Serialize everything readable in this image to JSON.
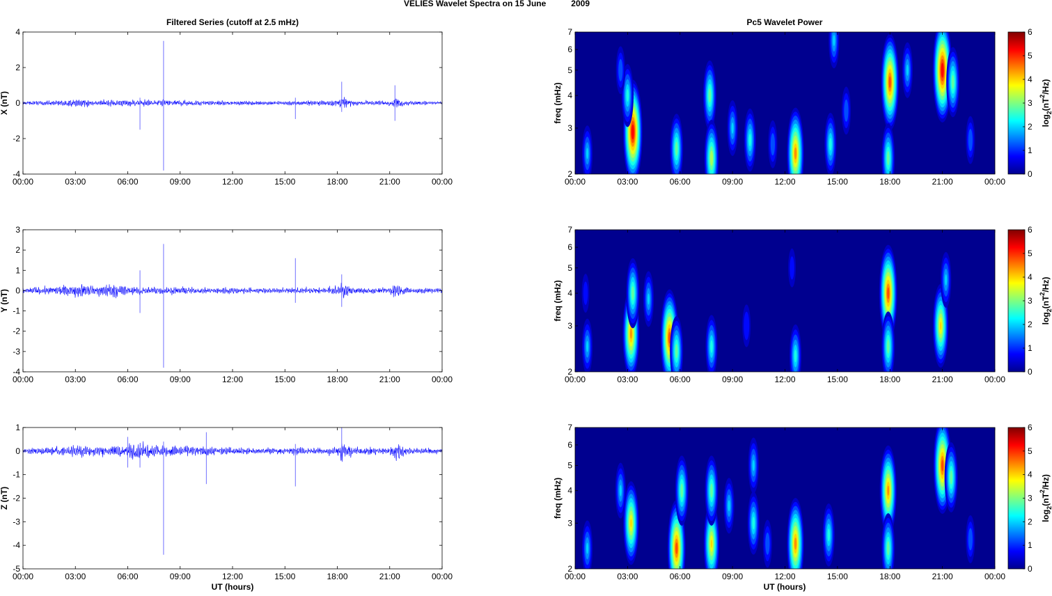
{
  "title": {
    "main": "VELIES Wavelet Spectra on 15 June",
    "year": "2009"
  },
  "column_titles": {
    "left": "Filtered Series (cutoff at 2.5 mHz)",
    "right": "Pc5 Wavelet Power"
  },
  "xlabel": "UT (hours)",
  "time_ticks": [
    "00:00",
    "03:00",
    "06:00",
    "09:00",
    "12:00",
    "15:00",
    "18:00",
    "21:00",
    "00:00"
  ],
  "colorbar": {
    "ticks": [
      "0",
      "1",
      "2",
      "3",
      "4",
      "5",
      "6"
    ],
    "range": [
      0,
      6
    ],
    "label_parts": [
      "log",
      "2",
      "(nT",
      "2",
      "/Hz)"
    ]
  },
  "colors": {
    "series": "#0000ff",
    "spike": "#7070ff",
    "background": "#00008f"
  },
  "chart_data": [
    {
      "type": "line",
      "component": "X",
      "ylabel": "X (nT)",
      "ylim": [
        -4,
        4
      ],
      "yticks": [
        "-4",
        "-2",
        "0",
        "2",
        "4"
      ],
      "xlim_hours": [
        0,
        24
      ],
      "envelope": [
        [
          0,
          0.07
        ],
        [
          2.5,
          0.12
        ],
        [
          3.3,
          0.18
        ],
        [
          4,
          0.1
        ],
        [
          6,
          0.12
        ],
        [
          8,
          0.12
        ],
        [
          10,
          0.1
        ],
        [
          12,
          0.08
        ],
        [
          15,
          0.08
        ],
        [
          18,
          0.12
        ],
        [
          18.3,
          0.25
        ],
        [
          19,
          0.08
        ],
        [
          21,
          0.1
        ],
        [
          21.3,
          0.22
        ],
        [
          22,
          0.09
        ],
        [
          24,
          0.06
        ]
      ],
      "spikes": [
        [
          6.7,
          0.3,
          -1.5
        ],
        [
          8.05,
          3.5,
          -3.8
        ],
        [
          15.6,
          0.3,
          -0.9
        ],
        [
          18.25,
          1.2,
          -0.5
        ],
        [
          21.3,
          1.0,
          -1.0
        ]
      ]
    },
    {
      "type": "line",
      "component": "Y",
      "ylabel": "Y (nT)",
      "ylim": [
        -4,
        3
      ],
      "yticks": [
        "-4",
        "-3",
        "-2",
        "-1",
        "0",
        "1",
        "2",
        "3"
      ],
      "xlim_hours": [
        0,
        24
      ],
      "envelope": [
        [
          0,
          0.09
        ],
        [
          2,
          0.14
        ],
        [
          3.5,
          0.22
        ],
        [
          5,
          0.22
        ],
        [
          6.5,
          0.15
        ],
        [
          8,
          0.12
        ],
        [
          10,
          0.1
        ],
        [
          12,
          0.1
        ],
        [
          15,
          0.09
        ],
        [
          18,
          0.12
        ],
        [
          18.3,
          0.3
        ],
        [
          19,
          0.1
        ],
        [
          21,
          0.1
        ],
        [
          21.3,
          0.25
        ],
        [
          22,
          0.1
        ],
        [
          24,
          0.09
        ]
      ],
      "spikes": [
        [
          6.7,
          1.0,
          -1.1
        ],
        [
          8.05,
          2.3,
          -3.8
        ],
        [
          15.6,
          1.6,
          -0.6
        ],
        [
          18.25,
          0.8,
          -0.8
        ]
      ]
    },
    {
      "type": "line",
      "component": "Z",
      "ylabel": "Z (nT)",
      "ylim": [
        -5,
        1
      ],
      "yticks": [
        "-5",
        "-4",
        "-3",
        "-2",
        "-1",
        "0",
        "1"
      ],
      "xlim_hours": [
        0,
        24
      ],
      "envelope": [
        [
          0,
          0.07
        ],
        [
          2,
          0.12
        ],
        [
          3.5,
          0.18
        ],
        [
          5,
          0.14
        ],
        [
          6,
          0.22
        ],
        [
          8,
          0.18
        ],
        [
          10,
          0.14
        ],
        [
          12,
          0.1
        ],
        [
          15,
          0.1
        ],
        [
          18,
          0.12
        ],
        [
          18.3,
          0.3
        ],
        [
          19,
          0.1
        ],
        [
          21,
          0.1
        ],
        [
          21.3,
          0.3
        ],
        [
          22,
          0.1
        ],
        [
          24,
          0.08
        ]
      ],
      "spikes": [
        [
          6.0,
          0.6,
          -0.7
        ],
        [
          6.7,
          0.2,
          -0.7
        ],
        [
          8.05,
          0.4,
          -4.4
        ],
        [
          10.5,
          0.8,
          -1.4
        ],
        [
          15.6,
          0.3,
          -1.5
        ],
        [
          18.25,
          1.0,
          -0.4
        ]
      ]
    },
    {
      "type": "heatmap",
      "component": "X",
      "ylabel": "freq (mHz)",
      "ylim": [
        2,
        7
      ],
      "yscale": "log",
      "yticks": [
        "2",
        "3",
        "4",
        "5",
        "6",
        "7"
      ],
      "clim": [
        0,
        6
      ],
      "events": [
        [
          0.7,
          2.4,
          2
        ],
        [
          3.3,
          2.9,
          5.6
        ],
        [
          3.0,
          4,
          2.5
        ],
        [
          2.6,
          5,
          1.5
        ],
        [
          5.8,
          2.5,
          3
        ],
        [
          7.7,
          4,
          3
        ],
        [
          7.8,
          2.3,
          3.5
        ],
        [
          9,
          3,
          2
        ],
        [
          10,
          2.7,
          2.5
        ],
        [
          11.3,
          2.6,
          1.5
        ],
        [
          12.6,
          2.4,
          4.6
        ],
        [
          14.6,
          2.6,
          2.5
        ],
        [
          14.8,
          6.5,
          2
        ],
        [
          15.5,
          3.5,
          1.5
        ],
        [
          18,
          4.5,
          5
        ],
        [
          17.9,
          2.3,
          3
        ],
        [
          19,
          5,
          2
        ],
        [
          21,
          5,
          5.6
        ],
        [
          21.6,
          4.5,
          3
        ],
        [
          22.6,
          2.7,
          1.5
        ]
      ]
    },
    {
      "type": "heatmap",
      "component": "Y",
      "ylabel": "freq (mHz)",
      "ylim": [
        2,
        7
      ],
      "yscale": "log",
      "yticks": [
        "2",
        "3",
        "4",
        "5",
        "6",
        "7"
      ],
      "clim": [
        0,
        6
      ],
      "events": [
        [
          0.6,
          4,
          1
        ],
        [
          0.7,
          2.5,
          2
        ],
        [
          3.2,
          2.8,
          4.5
        ],
        [
          3.3,
          4,
          3
        ],
        [
          4.2,
          3.8,
          2
        ],
        [
          5.4,
          2.7,
          5
        ],
        [
          5.8,
          2.4,
          3
        ],
        [
          7.8,
          2.5,
          2.5
        ],
        [
          9.8,
          3,
          1.2
        ],
        [
          12.4,
          5,
          1
        ],
        [
          12.6,
          2.3,
          2.5
        ],
        [
          17.9,
          4,
          5
        ],
        [
          17.9,
          2.5,
          3
        ],
        [
          20.9,
          3,
          4
        ],
        [
          21.2,
          4.5,
          2
        ]
      ]
    },
    {
      "type": "heatmap",
      "component": "Z",
      "ylabel": "freq (mHz)",
      "ylim": [
        2,
        7
      ],
      "yscale": "log",
      "yticks": [
        "2",
        "3",
        "4",
        "5",
        "6",
        "7"
      ],
      "clim": [
        0,
        6
      ],
      "events": [
        [
          0.7,
          2.4,
          2
        ],
        [
          2.6,
          4,
          2
        ],
        [
          3.2,
          3,
          4
        ],
        [
          5.8,
          2.4,
          5
        ],
        [
          6.1,
          4,
          3
        ],
        [
          7.8,
          2.5,
          4
        ],
        [
          7.8,
          4,
          3
        ],
        [
          8.8,
          3.5,
          2
        ],
        [
          10.2,
          3,
          2.5
        ],
        [
          10.2,
          5,
          2
        ],
        [
          11,
          2.5,
          1.5
        ],
        [
          12.6,
          2.5,
          4.6
        ],
        [
          14.5,
          2.7,
          2.5
        ],
        [
          17.9,
          4,
          4.5
        ],
        [
          17.9,
          2.4,
          3
        ],
        [
          21,
          5,
          5
        ],
        [
          21.5,
          4.5,
          3
        ],
        [
          22.6,
          2.6,
          1.5
        ]
      ]
    }
  ]
}
